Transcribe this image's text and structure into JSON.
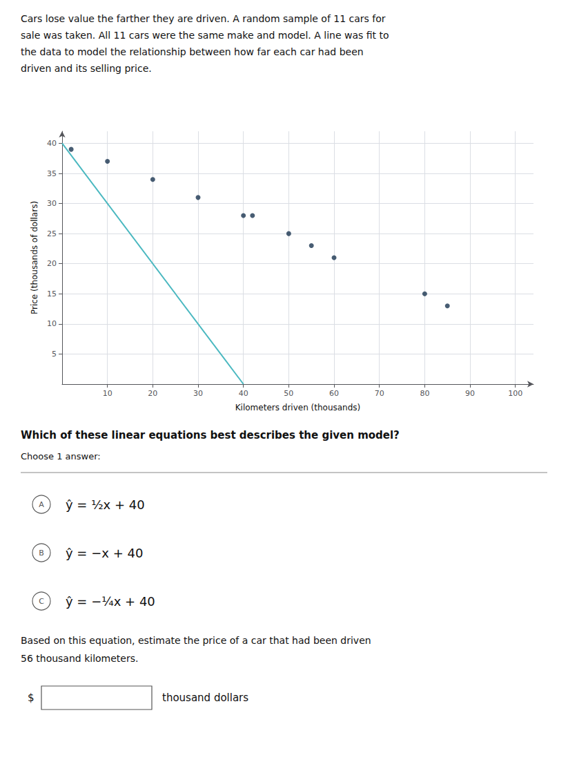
{
  "chart_data": {
    "type": "scatter",
    "xlabel": "Kilometers driven (thousands)",
    "ylabel": "Price (thousands of dollars)",
    "xlim": [
      0,
      104
    ],
    "ylim": [
      0,
      42
    ],
    "xticks": [
      10,
      20,
      30,
      40,
      50,
      60,
      70,
      80,
      90,
      100
    ],
    "yticks": [
      5,
      10,
      15,
      20,
      25,
      30,
      35,
      40
    ],
    "grid": true,
    "series": [
      {
        "type": "scatter",
        "color": "#1a3550",
        "x": [
          2,
          10,
          20,
          30,
          40,
          42,
          50,
          55,
          60,
          80,
          85
        ],
        "values": [
          39,
          37,
          34,
          31,
          28,
          28,
          25,
          23,
          21,
          15,
          13
        ]
      },
      {
        "type": "line",
        "color": "#4ab8c0",
        "x": [
          0,
          40
        ],
        "values": [
          40,
          0
        ]
      }
    ],
    "annotations": [
      "Cars lose value the farther they are driven. A random sample of 11 cars for",
      "sale was taken. All 11 cars were the same make and model. A line was fit to",
      "the data to model the relationship between how far each car had been",
      "driven and its selling price.",
      "Which of these linear equations best describes the given model?",
      "Choose 1 answer:",
      "A",
      "ŷ = ½x + 40",
      "B",
      "ŷ = −x + 40",
      "C",
      "ŷ = −¼x + 40",
      "Based on this equation, estimate the price of a car that had been driven",
      "56 thousand kilometers.",
      "$",
      "thousand dollars"
    ]
  }
}
